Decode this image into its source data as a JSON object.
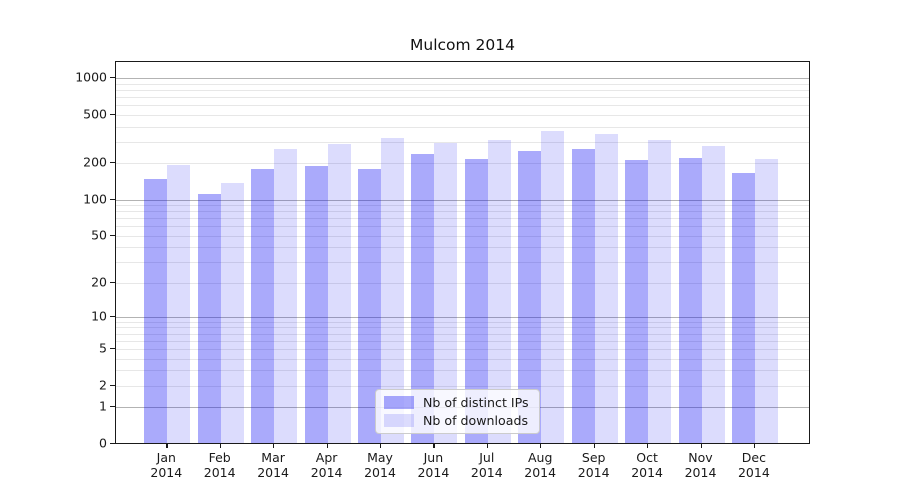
{
  "chart_data": {
    "type": "bar",
    "title": "Mulcom 2014",
    "categories": [
      "Jan",
      "Feb",
      "Mar",
      "Apr",
      "May",
      "Jun",
      "Jul",
      "Aug",
      "Sep",
      "Oct",
      "Nov",
      "Dec"
    ],
    "year": "2014",
    "series": [
      {
        "name": "Nb of distinct IPs",
        "color": "rgba(10,10,242,0.345)",
        "values": [
          145,
          110,
          175,
          187,
          178,
          233,
          212,
          250,
          260,
          208,
          218,
          162
        ]
      },
      {
        "name": "Nb of downloads",
        "color": "rgba(10,10,242,0.14)",
        "values": [
          190,
          134,
          260,
          285,
          315,
          290,
          305,
          360,
          345,
          308,
          272,
          215
        ]
      }
    ],
    "yticks": [
      0,
      1,
      2,
      5,
      10,
      20,
      50,
      100,
      200,
      500,
      1000
    ],
    "yscale": "log1p",
    "ylim": [
      0,
      1380
    ],
    "grid": {
      "major_ticks": [
        1,
        10,
        100,
        1000
      ],
      "minor_decades": [
        1,
        10,
        100
      ],
      "major_color": "#b3b3b3",
      "minor_color": "#e7e7e7"
    },
    "legend": {
      "position": "lower center"
    },
    "axis_color": "#1a1a1a"
  }
}
